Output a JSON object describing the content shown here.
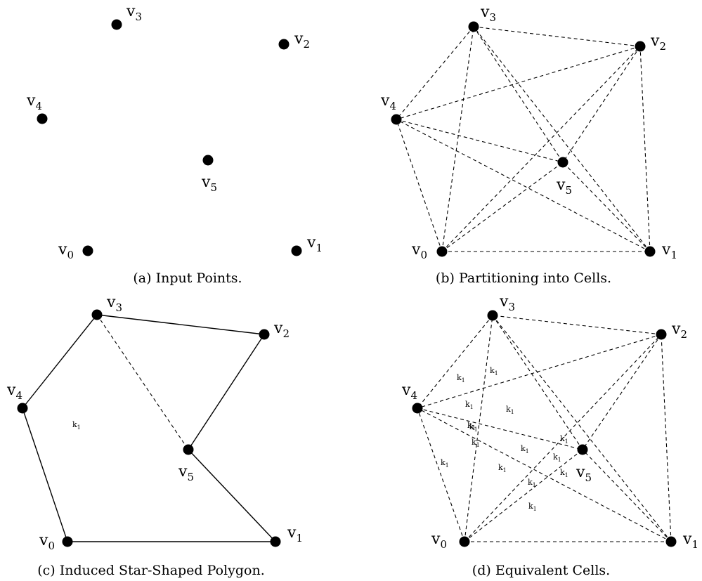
{
  "panels": [
    {
      "id": "a",
      "caption": "(a) Input Points.",
      "vertices": [
        "v0",
        "v1",
        "v2",
        "v3",
        "v4",
        "v5"
      ],
      "solid_edges": [],
      "dashed_edges": [],
      "cell_labels": []
    },
    {
      "id": "b",
      "caption": "(b) Partitioning into Cells.",
      "vertices": [
        "v0",
        "v1",
        "v2",
        "v3",
        "v4",
        "v5"
      ],
      "solid_edges": [],
      "dashed_edges": [
        [
          "v0",
          "v1"
        ],
        [
          "v0",
          "v2"
        ],
        [
          "v0",
          "v3"
        ],
        [
          "v0",
          "v4"
        ],
        [
          "v0",
          "v5"
        ],
        [
          "v1",
          "v2"
        ],
        [
          "v1",
          "v3"
        ],
        [
          "v1",
          "v4"
        ],
        [
          "v1",
          "v5"
        ],
        [
          "v2",
          "v3"
        ],
        [
          "v2",
          "v4"
        ],
        [
          "v2",
          "v5"
        ],
        [
          "v3",
          "v4"
        ],
        [
          "v3",
          "v5"
        ],
        [
          "v4",
          "v5"
        ]
      ],
      "cell_labels": []
    },
    {
      "id": "c",
      "caption": "(c) Induced Star-Shaped Polygon.",
      "vertices": [
        "v0",
        "v1",
        "v2",
        "v3",
        "v4",
        "v5"
      ],
      "solid_edges": [
        [
          "v0",
          "v1"
        ],
        [
          "v1",
          "v5"
        ],
        [
          "v5",
          "v2"
        ],
        [
          "v2",
          "v3"
        ],
        [
          "v3",
          "v4"
        ],
        [
          "v4",
          "v0"
        ]
      ],
      "dashed_edges": [
        [
          "v3",
          "v5"
        ]
      ],
      "cell_labels": [
        {
          "base": "k",
          "sub": "1"
        }
      ]
    },
    {
      "id": "d",
      "caption": "(d) Equivalent Cells.",
      "vertices": [
        "v0",
        "v1",
        "v2",
        "v3",
        "v4",
        "v5"
      ],
      "solid_edges": [],
      "dashed_edges": [
        [
          "v0",
          "v1"
        ],
        [
          "v0",
          "v2"
        ],
        [
          "v0",
          "v3"
        ],
        [
          "v0",
          "v4"
        ],
        [
          "v0",
          "v5"
        ],
        [
          "v1",
          "v2"
        ],
        [
          "v1",
          "v3"
        ],
        [
          "v1",
          "v4"
        ],
        [
          "v1",
          "v5"
        ],
        [
          "v2",
          "v3"
        ],
        [
          "v2",
          "v4"
        ],
        [
          "v2",
          "v5"
        ],
        [
          "v3",
          "v4"
        ],
        [
          "v3",
          "v5"
        ],
        [
          "v4",
          "v5"
        ]
      ],
      "cell_labels": [
        {
          "base": "k",
          "sub": "1"
        },
        {
          "base": "k",
          "sub": "1"
        },
        {
          "base": "k",
          "sub": "1"
        },
        {
          "base": "k",
          "sub": "1"
        },
        {
          "base": "k",
          "sub": "1"
        },
        {
          "base": "k",
          "sub": "1"
        },
        {
          "base": "k",
          "sub": "1"
        },
        {
          "base": "k",
          "sub": "1"
        },
        {
          "base": "k",
          "sub": "1"
        },
        {
          "base": "k",
          "sub": "1"
        },
        {
          "base": "k",
          "sub": "1"
        },
        {
          "base": "k",
          "sub": "1"
        },
        {
          "base": "k",
          "sub": "1"
        },
        {
          "base": "k",
          "sub": "1"
        },
        {
          "base": "k",
          "sub": "1"
        }
      ]
    }
  ],
  "vertex_labels": {
    "v0": {
      "base": "v",
      "sub": "0"
    },
    "v1": {
      "base": "v",
      "sub": "1"
    },
    "v2": {
      "base": "v",
      "sub": "2"
    },
    "v3": {
      "base": "v",
      "sub": "3"
    },
    "v4": {
      "base": "v",
      "sub": "4"
    },
    "v5": {
      "base": "v",
      "sub": "5"
    }
  }
}
